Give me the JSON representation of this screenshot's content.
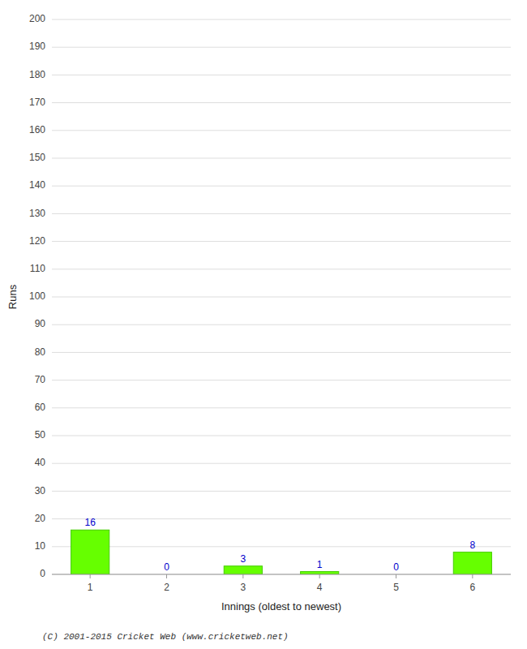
{
  "chart_data": {
    "type": "bar",
    "categories": [
      "1",
      "2",
      "3",
      "4",
      "5",
      "6"
    ],
    "values": [
      16,
      0,
      3,
      1,
      0,
      8
    ],
    "color": "#66ff00",
    "xlabel": "Innings (oldest to newest)",
    "ylabel": "Runs",
    "ylim": [
      0,
      200
    ],
    "yticks": [
      0,
      10,
      20,
      30,
      40,
      50,
      60,
      70,
      80,
      90,
      100,
      110,
      120,
      130,
      140,
      150,
      160,
      170,
      180,
      190,
      200
    ],
    "grid": true,
    "data_labels": true,
    "annotations": [
      "(C) 2001-2015 Cricket Web (www.cricketweb.net)"
    ]
  }
}
